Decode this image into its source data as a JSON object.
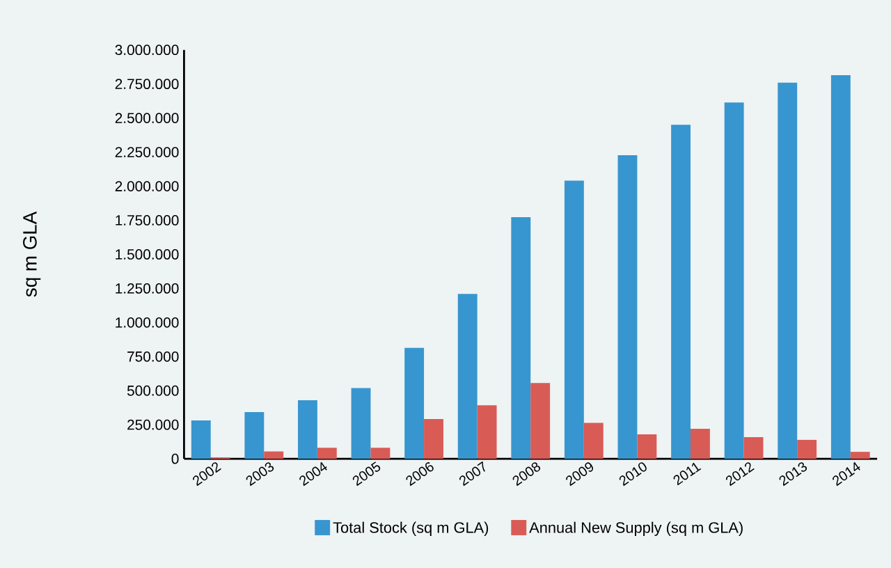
{
  "chart_data": {
    "type": "bar",
    "ylabel": "sq m GLA",
    "categories": [
      "2002",
      "2003",
      "2004",
      "2005",
      "2006",
      "2007",
      "2008",
      "2009",
      "2010",
      "2011",
      "2012",
      "2013",
      "2014"
    ],
    "series": [
      {
        "name": "Total Stock (sq m GLA)",
        "color": "#3796cf",
        "values": [
          282000,
          343000,
          430000,
          519000,
          814000,
          1210000,
          1773000,
          2041000,
          2227000,
          2451000,
          2614000,
          2759000,
          2814000
        ]
      },
      {
        "name": "Annual New Supply (sq m GLA)",
        "color": "#d95b55",
        "values": [
          10000,
          54000,
          81000,
          81000,
          292000,
          393000,
          556000,
          264000,
          180000,
          220000,
          159000,
          139000,
          51000
        ]
      }
    ],
    "ylim": [
      0,
      3000000
    ],
    "yticks": [
      0,
      {
        "value": 250000,
        "label": "250.000"
      },
      {
        "value": 500000,
        "label": "500.000"
      },
      {
        "value": 750000,
        "label": "750.000"
      },
      {
        "value": 1000000,
        "label": "1.000.000"
      },
      {
        "value": 1250000,
        "label": "1.250.000"
      },
      {
        "value": 1500000,
        "label": "1.500.000"
      },
      {
        "value": 1750000,
        "label": "1.750.000"
      },
      {
        "value": 2000000,
        "label": "2.000.000"
      },
      {
        "value": 2250000,
        "label": "2.250.000"
      },
      {
        "value": 2500000,
        "label": "2.500.000"
      },
      {
        "value": 2750000,
        "label": "2.750.000"
      },
      {
        "value": 3000000,
        "label": "3.000.000"
      }
    ],
    "legend": "bottom",
    "grid": false
  }
}
